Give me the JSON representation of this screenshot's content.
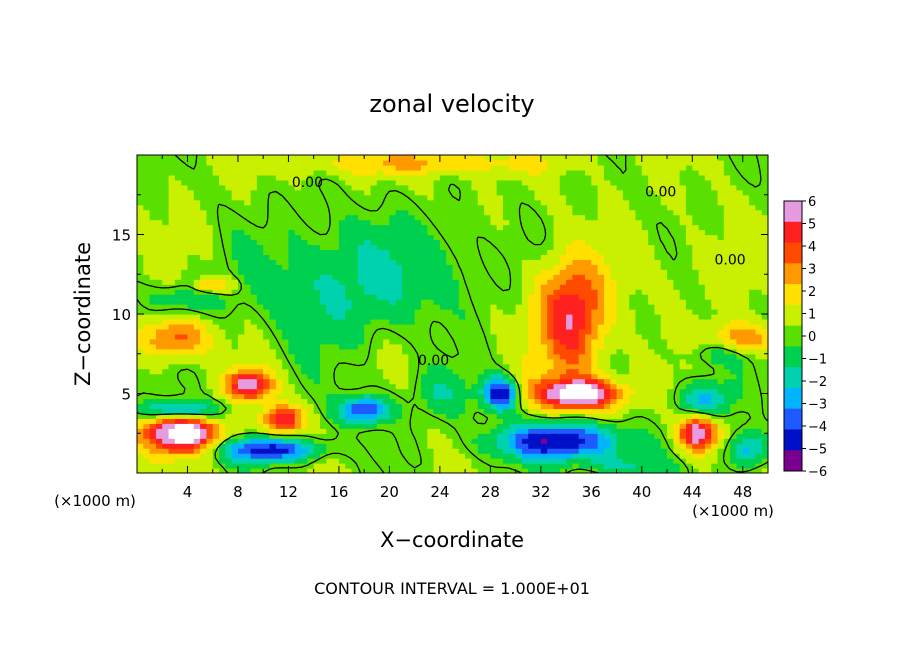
{
  "chart_data": {
    "type": "heatmap",
    "title": "zonal velocity",
    "xlabel": "X−coordinate",
    "ylabel": "Z−coordinate",
    "x_unit": "(×1000 m)",
    "z_unit": "(×1000 m)",
    "xlim": [
      0,
      50
    ],
    "ylim": [
      0,
      20
    ],
    "x_ticks": [
      4,
      8,
      12,
      16,
      20,
      24,
      28,
      32,
      36,
      40,
      44,
      48
    ],
    "y_ticks": [
      5,
      10,
      15
    ],
    "colorbar": {
      "min": -6,
      "max": 6,
      "ticks": [
        6,
        5,
        4,
        3,
        2,
        1,
        0,
        -1,
        -2,
        -3,
        -4,
        -5,
        -6
      ],
      "tick_labels": [
        "6",
        "5",
        "4",
        "3",
        "2",
        "1",
        "0",
        "−1",
        "−2",
        "−3",
        "−4",
        "−5",
        "−6"
      ],
      "colors": [
        "#e69be0",
        "#ff2020",
        "#ff4a00",
        "#ff9900",
        "#ffe000",
        "#c8f000",
        "#5ae000",
        "#00d050",
        "#00d2b0",
        "#00b4ff",
        "#1e5aff",
        "#0010c8",
        "#7a0090"
      ]
    },
    "contour_label": "0.00",
    "contour_interval": "CONTOUR INTERVAL = 1.000E+01",
    "blobs": [
      {
        "x": 34.5,
        "z": 9.0,
        "sx": 2.6,
        "sz": 3.2,
        "v": 3.8
      },
      {
        "x": 34.2,
        "z": 11.5,
        "sx": 2.8,
        "sz": 2.5,
        "v": 1.8
      },
      {
        "x": 35.0,
        "z": 5.0,
        "sx": 3.4,
        "sz": 1.0,
        "v": 6.5
      },
      {
        "x": 33.5,
        "z": 2.0,
        "sx": 5.0,
        "sz": 1.2,
        "v": -5.5
      },
      {
        "x": 16.0,
        "z": 12.0,
        "sx": 6.5,
        "sz": 4.0,
        "v": -2.0
      },
      {
        "x": 24.0,
        "z": 13.0,
        "sx": 4.0,
        "sz": 3.0,
        "v": -1.0
      },
      {
        "x": 18.0,
        "z": 4.0,
        "sx": 2.0,
        "sz": 0.9,
        "v": -4.8
      },
      {
        "x": 9.0,
        "z": 5.6,
        "sx": 1.7,
        "sz": 0.9,
        "v": 5.8
      },
      {
        "x": 3.0,
        "z": 8.5,
        "sx": 2.5,
        "sz": 1.3,
        "v": 3.5
      },
      {
        "x": 3.5,
        "z": 2.5,
        "sx": 3.0,
        "sz": 1.2,
        "v": 7.0
      },
      {
        "x": 3.5,
        "z": 4.0,
        "sx": 3.0,
        "sz": 0.6,
        "v": -4.0
      },
      {
        "x": 10.5,
        "z": 1.5,
        "sx": 4.0,
        "sz": 0.8,
        "v": -5.0
      },
      {
        "x": 11.5,
        "z": 3.4,
        "sx": 1.5,
        "sz": 0.9,
        "v": 5.0
      },
      {
        "x": 28.8,
        "z": 5.0,
        "sx": 1.4,
        "sz": 1.0,
        "v": -5.5
      },
      {
        "x": 44.5,
        "z": 2.6,
        "sx": 1.5,
        "sz": 1.2,
        "v": 6.5
      },
      {
        "x": 45.0,
        "z": 4.5,
        "sx": 2.0,
        "sz": 1.3,
        "v": -3.5
      },
      {
        "x": 48.0,
        "z": 8.5,
        "sx": 2.5,
        "sz": 1.0,
        "v": 3.0
      },
      {
        "x": 46.0,
        "z": 7.5,
        "sx": 2.5,
        "sz": 0.8,
        "v": -1.5
      },
      {
        "x": 44.0,
        "z": 13.0,
        "sx": 6.0,
        "sz": 2.5,
        "v": 0.4
      },
      {
        "x": 22.0,
        "z": 19.5,
        "sx": 10.0,
        "sz": 0.8,
        "v": 2.0
      },
      {
        "x": 4.0,
        "z": 11.0,
        "sx": 3.0,
        "sz": 1.0,
        "v": -1.8
      },
      {
        "x": 48.5,
        "z": 1.5,
        "sx": 1.5,
        "sz": 1.2,
        "v": -3.5
      },
      {
        "x": 39.0,
        "z": 0.5,
        "sx": 3.0,
        "sz": 0.6,
        "v": -2.0
      },
      {
        "x": 6.0,
        "z": 11.8,
        "sx": 1.5,
        "sz": 0.5,
        "v": 3.0
      },
      {
        "x": 24.0,
        "z": 5.0,
        "sx": 2.5,
        "sz": 1.5,
        "v": -1.5
      }
    ]
  }
}
